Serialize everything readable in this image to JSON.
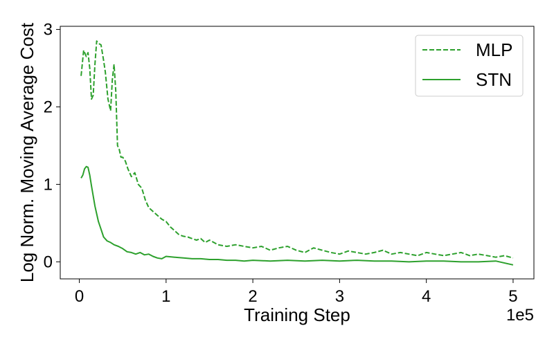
{
  "chart_data": {
    "type": "line",
    "xlabel": "Training Step",
    "ylabel": "Log Norm. Moving Average Cost",
    "x_offset_text": "1e5",
    "xlim": [
      -0.22,
      5.24
    ],
    "ylim": [
      -0.22,
      3.04
    ],
    "x_ticks": [
      0,
      1,
      2,
      3,
      4,
      5
    ],
    "x_tick_labels": [
      "0",
      "1",
      "2",
      "3",
      "4",
      "5"
    ],
    "y_ticks": [
      0,
      1,
      2,
      3
    ],
    "y_tick_labels": [
      "0",
      "1",
      "2",
      "3"
    ],
    "grid": false,
    "legend_position": "top-right",
    "color": "#2ca02c",
    "series": [
      {
        "name": "MLP",
        "line_style": "dashed",
        "x": [
          0.02,
          0.05,
          0.08,
          0.1,
          0.12,
          0.14,
          0.16,
          0.18,
          0.2,
          0.22,
          0.25,
          0.28,
          0.3,
          0.33,
          0.36,
          0.38,
          0.4,
          0.42,
          0.44,
          0.46,
          0.48,
          0.5,
          0.53,
          0.56,
          0.6,
          0.64,
          0.68,
          0.72,
          0.76,
          0.8,
          0.85,
          0.9,
          0.95,
          1.0,
          1.05,
          1.1,
          1.15,
          1.2,
          1.25,
          1.3,
          1.35,
          1.4,
          1.45,
          1.5,
          1.6,
          1.7,
          1.8,
          1.9,
          2.0,
          2.1,
          2.2,
          2.3,
          2.4,
          2.5,
          2.6,
          2.7,
          2.8,
          2.9,
          3.0,
          3.1,
          3.2,
          3.3,
          3.4,
          3.5,
          3.6,
          3.7,
          3.8,
          3.9,
          4.0,
          4.1,
          4.2,
          4.3,
          4.4,
          4.5,
          4.6,
          4.7,
          4.8,
          4.9,
          5.0
        ],
        "y": [
          2.4,
          2.73,
          2.65,
          2.7,
          2.5,
          2.1,
          2.15,
          2.55,
          2.85,
          2.82,
          2.8,
          2.6,
          2.45,
          2.1,
          1.95,
          2.35,
          2.55,
          2.2,
          1.5,
          1.45,
          1.35,
          1.35,
          1.3,
          1.2,
          1.1,
          1.15,
          1.0,
          0.95,
          0.8,
          0.7,
          0.65,
          0.6,
          0.55,
          0.52,
          0.45,
          0.4,
          0.35,
          0.33,
          0.32,
          0.3,
          0.28,
          0.3,
          0.25,
          0.28,
          0.22,
          0.2,
          0.22,
          0.2,
          0.18,
          0.2,
          0.15,
          0.18,
          0.2,
          0.15,
          0.12,
          0.18,
          0.15,
          0.12,
          0.1,
          0.14,
          0.12,
          0.1,
          0.12,
          0.15,
          0.1,
          0.12,
          0.1,
          0.08,
          0.12,
          0.1,
          0.08,
          0.1,
          0.12,
          0.08,
          0.1,
          0.08,
          0.06,
          0.08,
          0.05
        ]
      },
      {
        "name": "STN",
        "line_style": "solid",
        "x": [
          0.02,
          0.04,
          0.06,
          0.08,
          0.1,
          0.12,
          0.14,
          0.16,
          0.18,
          0.2,
          0.22,
          0.25,
          0.28,
          0.32,
          0.36,
          0.4,
          0.45,
          0.5,
          0.55,
          0.6,
          0.65,
          0.7,
          0.75,
          0.8,
          0.85,
          0.9,
          0.95,
          1.0,
          1.1,
          1.2,
          1.3,
          1.4,
          1.5,
          1.6,
          1.7,
          1.8,
          1.9,
          2.0,
          2.2,
          2.4,
          2.6,
          2.8,
          3.0,
          3.2,
          3.4,
          3.6,
          3.8,
          4.0,
          4.2,
          4.4,
          4.6,
          4.8,
          5.0
        ],
        "y": [
          1.08,
          1.12,
          1.2,
          1.23,
          1.22,
          1.12,
          0.98,
          0.85,
          0.72,
          0.62,
          0.52,
          0.42,
          0.32,
          0.27,
          0.25,
          0.22,
          0.2,
          0.17,
          0.13,
          0.12,
          0.1,
          0.12,
          0.09,
          0.1,
          0.07,
          0.05,
          0.04,
          0.07,
          0.06,
          0.05,
          0.04,
          0.04,
          0.03,
          0.03,
          0.02,
          0.02,
          0.01,
          0.02,
          0.01,
          0.02,
          0.01,
          0.02,
          0.01,
          0.02,
          0.01,
          0.01,
          0.0,
          0.01,
          0.01,
          0.0,
          0.0,
          0.01,
          -0.04
        ]
      }
    ]
  }
}
